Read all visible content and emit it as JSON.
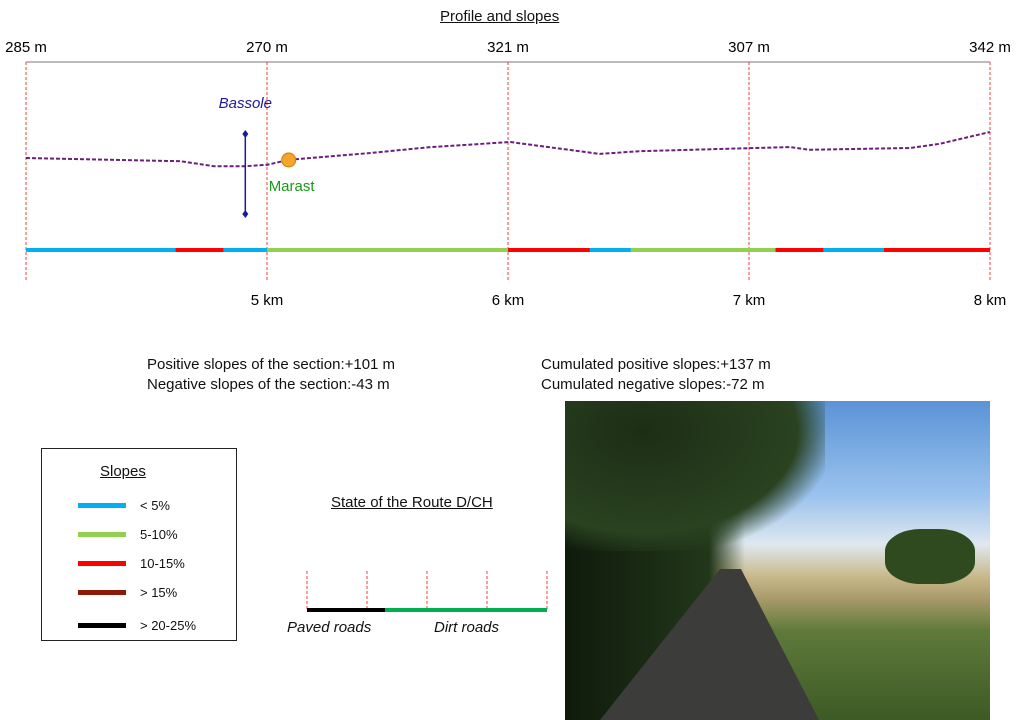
{
  "profile": {
    "title": "Profile and slopes",
    "elevation_labels": [
      "285 m",
      "270 m",
      "321 m",
      "307 m",
      "342 m"
    ],
    "distance_labels": [
      "5 km",
      "6 km",
      "7 km",
      "8 km"
    ],
    "km_range": [
      4,
      8
    ],
    "line_color": "#6b1f7a",
    "grid_color": "#ff3b3b",
    "profile_points": [
      {
        "km": 4.0,
        "elev": 285
      },
      {
        "km": 4.64,
        "elev": 278
      },
      {
        "km": 4.78,
        "elev": 267
      },
      {
        "km": 4.91,
        "elev": 267
      },
      {
        "km": 5.0,
        "elev": 270
      },
      {
        "km": 5.09,
        "elev": 281
      },
      {
        "km": 5.43,
        "elev": 296
      },
      {
        "km": 5.68,
        "elev": 309
      },
      {
        "km": 6.01,
        "elev": 320
      },
      {
        "km": 6.38,
        "elev": 294
      },
      {
        "km": 6.55,
        "elev": 300
      },
      {
        "km": 7.17,
        "elev": 309
      },
      {
        "km": 7.25,
        "elev": 303
      },
      {
        "km": 7.67,
        "elev": 307
      },
      {
        "km": 7.79,
        "elev": 316
      },
      {
        "km": 8.0,
        "elev": 342
      }
    ],
    "slope_segments": [
      {
        "from": 4.0,
        "to": 4.62,
        "class": "< 5%"
      },
      {
        "from": 4.62,
        "to": 4.82,
        "class": "10-15%"
      },
      {
        "from": 4.82,
        "to": 5.0,
        "class": "< 5%"
      },
      {
        "from": 5.0,
        "to": 6.0,
        "class": "5-10%"
      },
      {
        "from": 6.0,
        "to": 6.34,
        "class": "10-15%"
      },
      {
        "from": 6.34,
        "to": 6.51,
        "class": "< 5%"
      },
      {
        "from": 6.51,
        "to": 7.11,
        "class": "5-10%"
      },
      {
        "from": 7.11,
        "to": 7.31,
        "class": "10-15%"
      },
      {
        "from": 7.31,
        "to": 7.56,
        "class": "< 5%"
      },
      {
        "from": 7.56,
        "to": 8.0,
        "class": "10-15%"
      }
    ],
    "places": [
      {
        "name": "Bassole",
        "km": 4.91,
        "color": "#1a1a9a",
        "marker": "vertical-bar"
      },
      {
        "name": "Marast",
        "km": 5.09,
        "color": "#1a9a1a",
        "marker": "orange-dot"
      }
    ]
  },
  "stats": {
    "section_positive": "Positive slopes of the section:+101 m",
    "section_negative": "Negative slopes of the section:-43 m",
    "cumulated_positive": "Cumulated positive slopes:+137 m",
    "cumulated_negative": "Cumulated negative slopes:-72 m"
  },
  "legend": {
    "title": "Slopes",
    "items": [
      {
        "label": "< 5%",
        "color": "#00b0f0"
      },
      {
        "label": "5-10%",
        "color": "#92d050"
      },
      {
        "label": "10-15%",
        "color": "#ff0000"
      },
      {
        "label": "> 15%",
        "color": "#8b1a0a"
      },
      {
        "label": "> 20-25%",
        "color": "#000000"
      }
    ]
  },
  "route_state": {
    "title": "State of the Route D/CH",
    "segments": [
      {
        "label": "Paved roads",
        "color": "#000000",
        "share": 0.325
      },
      {
        "label": "Dirt roads",
        "color": "#00b050",
        "share": 0.675
      }
    ]
  },
  "photo": {
    "subject": "rural paved road with trees and fields"
  }
}
